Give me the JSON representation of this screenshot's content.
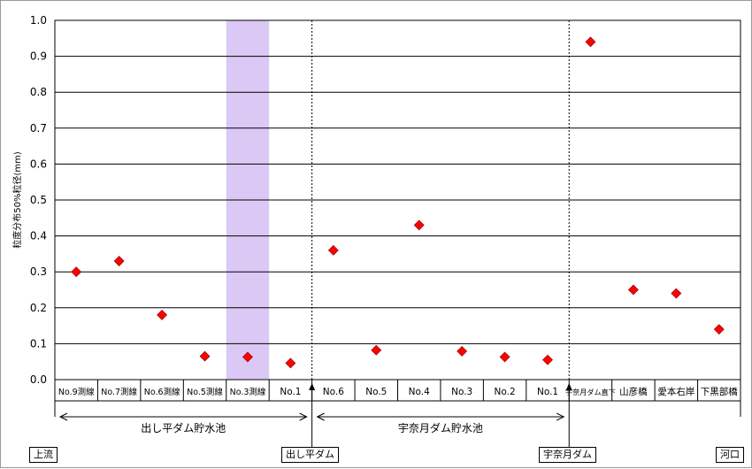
{
  "chart_data": {
    "type": "scatter",
    "ylabel": "粒度分布50%粒径(mm)",
    "ylim": [
      0,
      1.0
    ],
    "yticks": [
      "0.0",
      "0.1",
      "0.2",
      "0.3",
      "0.4",
      "0.5",
      "0.6",
      "0.7",
      "0.8",
      "0.9",
      "1.0"
    ],
    "grid": true,
    "categories": [
      "No.9測線",
      "No.7測線",
      "No.6測線",
      "No.5測線",
      "No.3測線",
      "No.1",
      "No.6",
      "No.5",
      "No.4",
      "No.3",
      "No.2",
      "No.1",
      "宇奈月ダム直下",
      "山彦橋",
      "愛本右岸",
      "下黒部橋"
    ],
    "series": [
      {
        "values": [
          0.3,
          0.33,
          0.18,
          0.065,
          0.063,
          0.046,
          0.36,
          0.082,
          0.43,
          0.079,
          0.063,
          0.055,
          0.94,
          0.25,
          0.24,
          0.14
        ]
      }
    ],
    "highlight_category": "No.3測線",
    "highlight_color": "#dcc8f5",
    "marker_color": "#ff0000",
    "reaches": [
      {
        "label": "出し平ダム貯水池"
      },
      {
        "label": "宇奈月ダム貯水池"
      }
    ],
    "landmarks": {
      "upstream": "上流",
      "dam1": "出し平ダム",
      "dam2": "宇奈月ダム",
      "estuary": "河口"
    }
  }
}
